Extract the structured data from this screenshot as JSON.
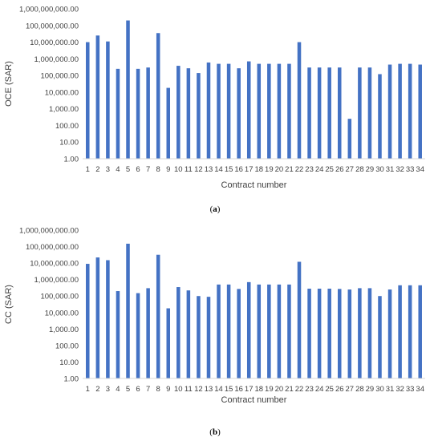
{
  "chart_data": [
    {
      "type": "bar",
      "panel_label": "a",
      "ylabel": "OCE (SAR)",
      "xlabel": "Contract number",
      "y_scale": "log",
      "ylim": [
        1,
        1000000000
      ],
      "y_ticks": [
        "1.00",
        "10.00",
        "100.00",
        "1,000.00",
        "10,000.00",
        "100,000.00",
        "1,000,000.00",
        "10,000,000.00",
        "100,000,000.00",
        "1,000,000,000.00"
      ],
      "categories": [
        "1",
        "2",
        "3",
        "4",
        "5",
        "6",
        "7",
        "8",
        "9",
        "10",
        "11",
        "12",
        "13",
        "14",
        "15",
        "16",
        "17",
        "18",
        "19",
        "20",
        "21",
        "22",
        "23",
        "24",
        "25",
        "26",
        "27",
        "28",
        "29",
        "30",
        "31",
        "32",
        "33",
        "34"
      ],
      "values": [
        10000000,
        25000000,
        11000000,
        250000,
        200000000,
        250000,
        300000,
        35000000,
        18000,
        380000,
        270000,
        140000,
        600000,
        500000,
        500000,
        270000,
        700000,
        500000,
        500000,
        500000,
        500000,
        10000000,
        300000,
        300000,
        300000,
        300000,
        250,
        300000,
        300000,
        120000,
        450000,
        500000,
        500000,
        450000
      ],
      "bar_color": "#4472c4",
      "grid": false
    },
    {
      "type": "bar",
      "panel_label": "b",
      "ylabel": "CC (SAR)",
      "xlabel": "Contract number",
      "y_scale": "log",
      "ylim": [
        1,
        1000000000
      ],
      "y_ticks": [
        "1.00",
        "10.00",
        "100.00",
        "1,000.00",
        "10,000.00",
        "100,000.00",
        "1,000,000.00",
        "10,000,000.00",
        "100,000,000.00",
        "1,000,000,000.00"
      ],
      "categories": [
        "1",
        "2",
        "3",
        "4",
        "5",
        "6",
        "7",
        "8",
        "9",
        "10",
        "11",
        "12",
        "13",
        "14",
        "15",
        "16",
        "17",
        "18",
        "19",
        "20",
        "21",
        "22",
        "23",
        "24",
        "25",
        "26",
        "27",
        "28",
        "29",
        "30",
        "31",
        "32",
        "33",
        "34"
      ],
      "values": [
        9000000,
        22000000,
        15000000,
        200000,
        150000000,
        150000,
        300000,
        32000000,
        18000,
        350000,
        220000,
        100000,
        90000,
        500000,
        500000,
        270000,
        700000,
        500000,
        500000,
        500000,
        500000,
        12000000,
        280000,
        280000,
        280000,
        270000,
        250000,
        300000,
        300000,
        100000,
        250000,
        450000,
        450000,
        450000
      ],
      "bar_color": "#4472c4",
      "grid": false
    }
  ]
}
